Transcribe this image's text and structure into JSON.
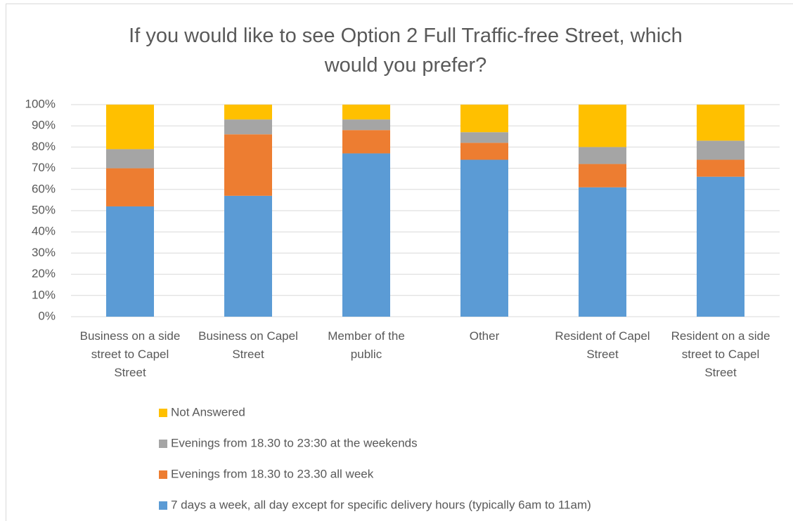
{
  "chart_data": {
    "type": "stacked_bar",
    "title": "If you would like to see Option 2 Full Traffic-free Street, which would you prefer?",
    "categories": [
      "Business on a side street to Capel Street",
      "Business on Capel Street",
      "Member of the public",
      "Other",
      "Resident of Capel Street",
      "Resident on a side street to Capel Street"
    ],
    "series": [
      {
        "name": "7 days a week, all day except for specific delivery hours (typically 6am to 11am)",
        "color": "#5b9bd5",
        "values": [
          52,
          57,
          77,
          74,
          61,
          66
        ]
      },
      {
        "name": "Evenings from 18.30 to 23.30 all week",
        "color": "#ed7d31",
        "values": [
          18,
          29,
          11,
          8,
          11,
          8
        ]
      },
      {
        "name": "Evenings from 18.30 to 23:30 at the weekends",
        "color": "#a5a5a5",
        "values": [
          9,
          7,
          5,
          5,
          8,
          9
        ]
      },
      {
        "name": "Not Answered",
        "color": "#ffc000",
        "values": [
          21,
          7,
          7,
          13,
          20,
          17
        ]
      }
    ],
    "ylim": [
      0,
      100
    ],
    "yticks": [
      {
        "value": 0,
        "label": "0%"
      },
      {
        "value": 10,
        "label": "10%"
      },
      {
        "value": 20,
        "label": "20%"
      },
      {
        "value": 30,
        "label": "30%"
      },
      {
        "value": 40,
        "label": "40%"
      },
      {
        "value": 50,
        "label": "50%"
      },
      {
        "value": 60,
        "label": "60%"
      },
      {
        "value": 70,
        "label": "70%"
      },
      {
        "value": 80,
        "label": "80%"
      },
      {
        "value": 90,
        "label": "90%"
      },
      {
        "value": 100,
        "label": "100%"
      }
    ],
    "grid": true,
    "legend": "bottom"
  }
}
